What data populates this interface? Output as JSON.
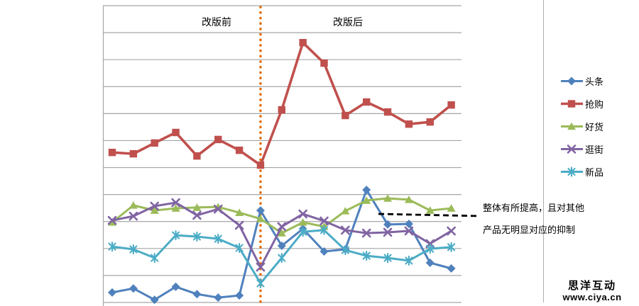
{
  "chart_data": {
    "type": "line",
    "title": "",
    "n_points": 17,
    "x_labels_visible": false,
    "y_labels_visible": false,
    "y_unit": "gridline-units",
    "ylim": [
      0,
      11
    ],
    "gridline_count": 12,
    "grid": "horizontal",
    "legend_position": "right",
    "divider_at_point": 8,
    "annotations": {
      "phase_before": "改版前",
      "phase_after": "改版后",
      "note_line1": "整体有所提高，且对其他",
      "note_line2": "产品无明显对应的抑制"
    },
    "series": [
      {
        "name": "头条",
        "color": "#4F81BD",
        "marker": "diamond",
        "values": [
          0.37,
          0.52,
          0.1,
          0.58,
          0.31,
          0.18,
          0.26,
          3.41,
          2.1,
          2.73,
          1.89,
          1.97,
          4.17,
          2.89,
          2.91,
          1.47,
          1.26
        ]
      },
      {
        "name": "抢购",
        "color": "#C0504D",
        "marker": "square",
        "values": [
          5.56,
          5.51,
          5.91,
          6.3,
          5.43,
          6.04,
          5.64,
          5.09,
          7.14,
          9.63,
          8.87,
          6.93,
          7.43,
          7.06,
          6.61,
          6.69,
          7.32
        ]
      },
      {
        "name": "好货",
        "color": "#9BBB59",
        "marker": "triangle",
        "values": [
          2.97,
          3.6,
          3.41,
          3.49,
          3.52,
          3.54,
          3.33,
          3.1,
          2.57,
          2.97,
          2.81,
          3.39,
          3.78,
          3.86,
          3.81,
          3.41,
          3.49
        ]
      },
      {
        "name": "逛街",
        "color": "#8064A2",
        "marker": "x",
        "values": [
          3.04,
          3.2,
          3.57,
          3.7,
          3.23,
          3.46,
          2.86,
          1.31,
          2.81,
          3.28,
          3.02,
          2.68,
          2.57,
          2.6,
          2.65,
          2.18,
          2.65
        ]
      },
      {
        "name": "新品",
        "color": "#4BACC6",
        "marker": "asterisk",
        "values": [
          2.07,
          1.97,
          1.65,
          2.49,
          2.44,
          2.36,
          2.02,
          0.71,
          1.65,
          2.62,
          2.68,
          1.94,
          1.73,
          1.65,
          1.55,
          1.99,
          2.05
        ]
      }
    ],
    "colors": {
      "gridline": "#A6A6A6",
      "divider": "#E36C0A",
      "annotation_line": "#000000",
      "page_border": "#ADADAD"
    }
  },
  "watermark": {
    "brand": "思洋互动",
    "url": "www.ciya.cn"
  }
}
